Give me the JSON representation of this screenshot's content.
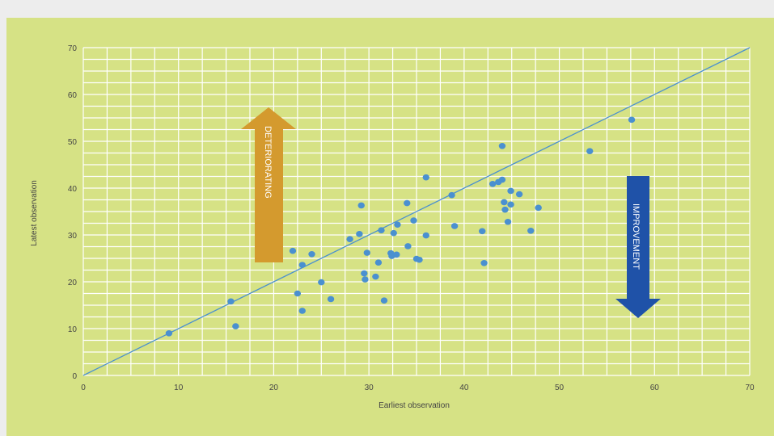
{
  "colors": {
    "background": "#d6e285",
    "frame": "#ededed",
    "grid": "#ffffff",
    "points": "#4a90d0",
    "diagonal": "#4a90d0",
    "deteriorating_arrow": "#d49a2e",
    "improvement_arrow": "#1f52a8"
  },
  "chart_data": {
    "type": "scatter",
    "xlabel": "Earliest observation",
    "ylabel": "Latest observation",
    "xlim": [
      0,
      70
    ],
    "ylim": [
      0,
      70
    ],
    "x_ticks": [
      0,
      10,
      20,
      30,
      40,
      50,
      60,
      70
    ],
    "y_ticks": [
      0,
      10,
      20,
      30,
      40,
      50,
      60,
      70
    ],
    "grid": true,
    "reference_line": {
      "type": "y=x",
      "from": [
        0,
        0
      ],
      "to": [
        70,
        70
      ]
    },
    "annotations": [
      {
        "text": "DETERIORATING",
        "direction": "up"
      },
      {
        "text": "IMPROVEMENT",
        "direction": "down"
      }
    ],
    "points": [
      {
        "x": 9,
        "y": 9
      },
      {
        "x": 15.5,
        "y": 15.8
      },
      {
        "x": 16,
        "y": 10.5
      },
      {
        "x": 22,
        "y": 26.6
      },
      {
        "x": 22.5,
        "y": 17.5
      },
      {
        "x": 23,
        "y": 23.6
      },
      {
        "x": 23,
        "y": 13.8
      },
      {
        "x": 24,
        "y": 25.9
      },
      {
        "x": 25,
        "y": 19.9
      },
      {
        "x": 26,
        "y": 16.3
      },
      {
        "x": 28,
        "y": 29.1
      },
      {
        "x": 29,
        "y": 30.2
      },
      {
        "x": 29.2,
        "y": 36.3
      },
      {
        "x": 29.5,
        "y": 21.8
      },
      {
        "x": 29.6,
        "y": 20.5
      },
      {
        "x": 29.8,
        "y": 26.2
      },
      {
        "x": 30.7,
        "y": 21.1
      },
      {
        "x": 31,
        "y": 24.1
      },
      {
        "x": 31.3,
        "y": 31
      },
      {
        "x": 31.6,
        "y": 16
      },
      {
        "x": 32.3,
        "y": 26.1
      },
      {
        "x": 32.4,
        "y": 25.5
      },
      {
        "x": 32.6,
        "y": 30.4
      },
      {
        "x": 32.9,
        "y": 25.8
      },
      {
        "x": 33,
        "y": 32.2
      },
      {
        "x": 34,
        "y": 36.8
      },
      {
        "x": 34.1,
        "y": 27.6
      },
      {
        "x": 34.7,
        "y": 33.1
      },
      {
        "x": 35,
        "y": 24.9
      },
      {
        "x": 35.3,
        "y": 24.7
      },
      {
        "x": 36,
        "y": 42.3
      },
      {
        "x": 36,
        "y": 29.9
      },
      {
        "x": 38.7,
        "y": 38.5
      },
      {
        "x": 39,
        "y": 31.9
      },
      {
        "x": 41.9,
        "y": 30.8
      },
      {
        "x": 42.1,
        "y": 24
      },
      {
        "x": 43,
        "y": 40.9
      },
      {
        "x": 43.6,
        "y": 41.3
      },
      {
        "x": 44,
        "y": 49
      },
      {
        "x": 44,
        "y": 41.8
      },
      {
        "x": 44.2,
        "y": 37
      },
      {
        "x": 44.3,
        "y": 35.4
      },
      {
        "x": 44.6,
        "y": 32.8
      },
      {
        "x": 44.9,
        "y": 39.4
      },
      {
        "x": 44.9,
        "y": 36.5
      },
      {
        "x": 45.8,
        "y": 38.7
      },
      {
        "x": 47,
        "y": 30.9
      },
      {
        "x": 47.8,
        "y": 35.8
      },
      {
        "x": 53.2,
        "y": 47.9
      },
      {
        "x": 57.6,
        "y": 54.6
      }
    ]
  }
}
